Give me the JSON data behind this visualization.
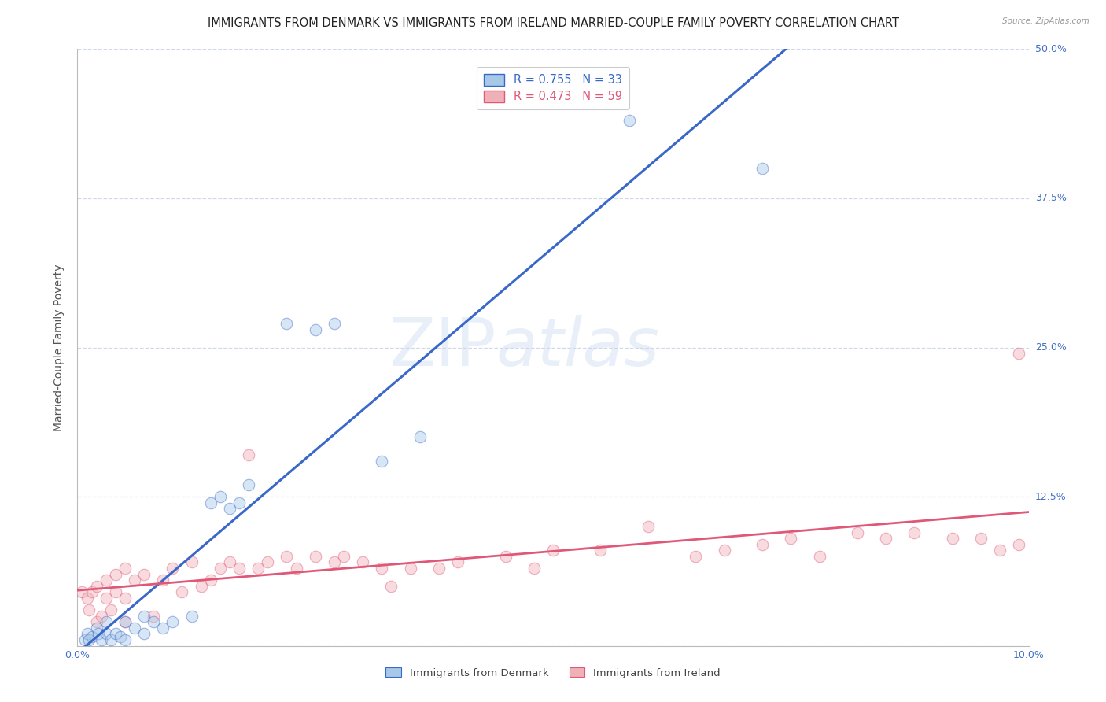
{
  "title": "IMMIGRANTS FROM DENMARK VS IMMIGRANTS FROM IRELAND MARRIED-COUPLE FAMILY POVERTY CORRELATION CHART",
  "source": "Source: ZipAtlas.com",
  "ylabel": "Married-Couple Family Poverty",
  "xlim": [
    0,
    0.1
  ],
  "ylim": [
    0,
    0.5
  ],
  "xticks": [
    0.0,
    0.025,
    0.05,
    0.075,
    0.1
  ],
  "yticks": [
    0.0,
    0.125,
    0.25,
    0.375,
    0.5
  ],
  "denmark_R": 0.755,
  "denmark_N": 33,
  "ireland_R": 0.473,
  "ireland_N": 59,
  "denmark_color": "#a8c8e8",
  "ireland_color": "#f0b0b8",
  "denmark_line_color": "#3a68c8",
  "ireland_line_color": "#e05878",
  "legend_denmark_label": "Immigrants from Denmark",
  "legend_ireland_label": "Immigrants from Ireland",
  "watermark_zip": "ZIP",
  "watermark_atlas": "atlas",
  "background_color": "#ffffff",
  "grid_color": "#d0d8e8",
  "tick_label_color": "#4472c4",
  "title_color": "#222222",
  "title_fontsize": 10.5,
  "axis_label_fontsize": 10,
  "tick_fontsize": 9,
  "marker_size": 110,
  "marker_alpha": 0.45,
  "denmark_x": [
    0.0008,
    0.001,
    0.0012,
    0.0015,
    0.002,
    0.0022,
    0.0025,
    0.003,
    0.003,
    0.0035,
    0.004,
    0.0045,
    0.005,
    0.005,
    0.006,
    0.007,
    0.007,
    0.008,
    0.009,
    0.01,
    0.012,
    0.014,
    0.015,
    0.016,
    0.017,
    0.018,
    0.022,
    0.025,
    0.027,
    0.032,
    0.036,
    0.058,
    0.072
  ],
  "denmark_y": [
    0.005,
    0.01,
    0.005,
    0.008,
    0.015,
    0.01,
    0.005,
    0.01,
    0.02,
    0.005,
    0.01,
    0.008,
    0.02,
    0.005,
    0.015,
    0.025,
    0.01,
    0.02,
    0.015,
    0.02,
    0.025,
    0.12,
    0.125,
    0.115,
    0.12,
    0.135,
    0.27,
    0.265,
    0.27,
    0.155,
    0.175,
    0.44,
    0.4
  ],
  "ireland_x": [
    0.0005,
    0.001,
    0.0012,
    0.0015,
    0.002,
    0.002,
    0.0025,
    0.003,
    0.003,
    0.0035,
    0.004,
    0.004,
    0.005,
    0.005,
    0.005,
    0.006,
    0.007,
    0.008,
    0.009,
    0.01,
    0.011,
    0.012,
    0.013,
    0.014,
    0.015,
    0.016,
    0.017,
    0.018,
    0.019,
    0.02,
    0.022,
    0.023,
    0.025,
    0.027,
    0.028,
    0.03,
    0.032,
    0.033,
    0.035,
    0.038,
    0.04,
    0.045,
    0.048,
    0.05,
    0.055,
    0.06,
    0.065,
    0.068,
    0.072,
    0.075,
    0.078,
    0.082,
    0.085,
    0.088,
    0.092,
    0.095,
    0.097,
    0.099,
    0.099
  ],
  "ireland_y": [
    0.045,
    0.04,
    0.03,
    0.045,
    0.05,
    0.02,
    0.025,
    0.04,
    0.055,
    0.03,
    0.045,
    0.06,
    0.02,
    0.04,
    0.065,
    0.055,
    0.06,
    0.025,
    0.055,
    0.065,
    0.045,
    0.07,
    0.05,
    0.055,
    0.065,
    0.07,
    0.065,
    0.16,
    0.065,
    0.07,
    0.075,
    0.065,
    0.075,
    0.07,
    0.075,
    0.07,
    0.065,
    0.05,
    0.065,
    0.065,
    0.07,
    0.075,
    0.065,
    0.08,
    0.08,
    0.1,
    0.075,
    0.08,
    0.085,
    0.09,
    0.075,
    0.095,
    0.09,
    0.095,
    0.09,
    0.09,
    0.08,
    0.085,
    0.245
  ]
}
